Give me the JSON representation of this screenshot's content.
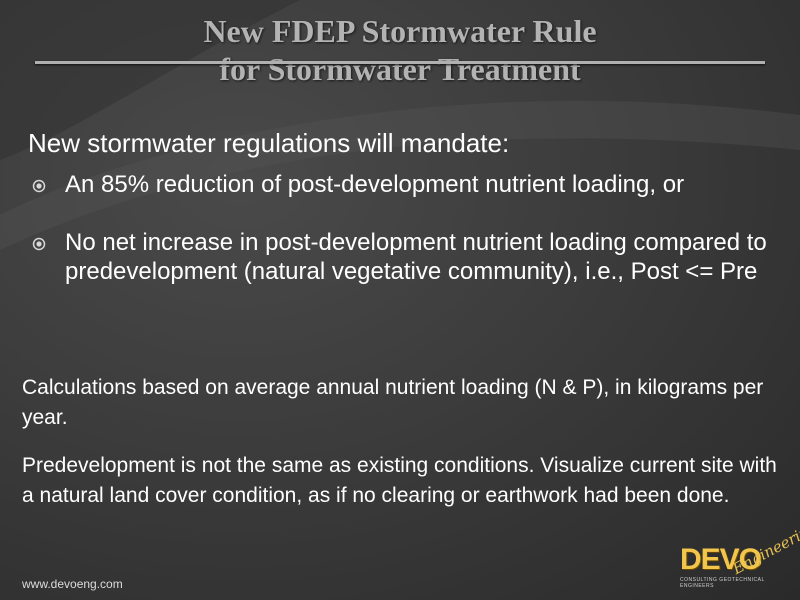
{
  "slide": {
    "title_line1": "New FDEP Stormwater Rule",
    "title_line2": "for Stormwater Treatment",
    "lead": "New stormwater regulations will mandate:",
    "bullets": [
      {
        "text": "An 85% reduction of post-development nutrient loading, or"
      },
      {
        "text": "No net increase in post-development nutrient loading compared to predevelopment (natural vegetative community), i.e., Post <= Pre"
      }
    ],
    "paragraph1": "Calculations based on average annual nutrient loading (N & P), in kilograms per year.",
    "paragraph2": "Predevelopment is not the same as existing conditions. Visualize current site with a natural land cover condition, as if no clearing or earthwork had been done."
  },
  "footer": {
    "url": "www.devoeng.com"
  },
  "logo": {
    "wordmark": "DEVO",
    "script": "Engineering",
    "tagline": "CONSULTING GEOTECHNICAL ENGINEERS"
  },
  "colors": {
    "title": "#b3b3b3",
    "body_text": "#ffffff",
    "logo_gold": "#f1c64a",
    "background": "#3c3c3c"
  }
}
